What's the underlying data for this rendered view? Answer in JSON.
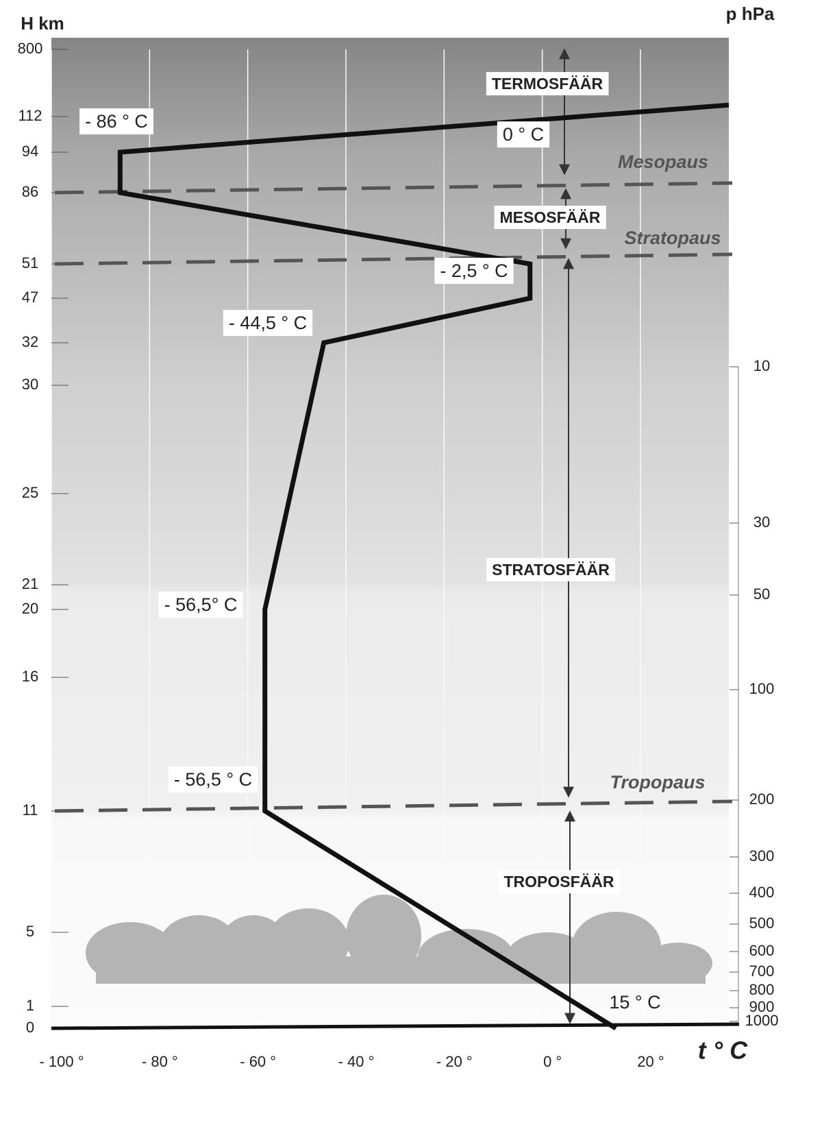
{
  "chart_data": {
    "type": "line",
    "y_title": "H km",
    "y2_title": "p hPa",
    "x_title": "t ° C",
    "x": [
      15,
      -56.5,
      -56.5,
      -44.5,
      -2.5,
      -2.5,
      -86,
      -86,
      38
    ],
    "values": [
      0,
      11,
      20,
      32,
      47,
      51,
      86,
      94,
      230
    ],
    "color": "#111111",
    "xlim": [
      -100,
      38
    ],
    "xticks": [
      {
        "value": -100,
        "label": "- 100 °"
      },
      {
        "value": -80,
        "label": "- 80 °"
      },
      {
        "value": -60,
        "label": "- 60 °"
      },
      {
        "value": -40,
        "label": "- 40 °"
      },
      {
        "value": -20,
        "label": "- 20 °"
      },
      {
        "value": 0,
        "label": "0 °"
      },
      {
        "value": 20,
        "label": "20 °"
      }
    ],
    "ylim": [
      0,
      800
    ],
    "yticks": [
      0,
      1,
      5,
      11,
      16,
      20,
      21,
      25,
      30,
      32,
      47,
      51,
      86,
      94,
      112,
      800
    ],
    "y2lim": [
      1000,
      10
    ],
    "y2ticks": [
      10,
      30,
      50,
      100,
      200,
      300,
      400,
      500,
      600,
      700,
      800,
      900,
      1000
    ],
    "grid": true,
    "annotations": [
      "- 86 ° C",
      "0 ° C",
      "- 2,5 ° C",
      "- 44,5 ° C",
      "- 56,5° C",
      "- 56,5 ° C",
      "15 ° C"
    ],
    "layers": [
      "TERMOSFÄÄR",
      "MESOSFÄÄR",
      "STRATOSFÄÄR",
      "TROPOSFÄÄR"
    ],
    "boundaries": [
      {
        "label": "Mesopaus",
        "value": 86
      },
      {
        "label": "Stratopaus",
        "value": 51
      },
      {
        "label": "Tropopaus",
        "value": 11
      }
    ]
  }
}
